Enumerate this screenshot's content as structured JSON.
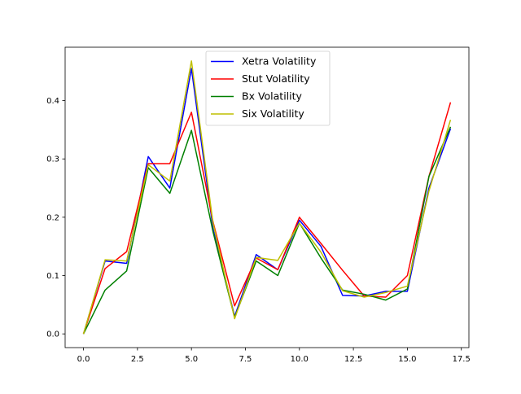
{
  "chart_data": {
    "type": "line",
    "title": "",
    "xlabel": "",
    "ylabel": "",
    "x": [
      0,
      1,
      2,
      3,
      4,
      5,
      6,
      7,
      8,
      9,
      10,
      11,
      12,
      13,
      14,
      15,
      16,
      17
    ],
    "xlim": [
      -0.85,
      17.85
    ],
    "ylim": [
      -0.0235,
      0.4915
    ],
    "x_ticks": [
      0.0,
      2.5,
      5.0,
      7.5,
      10.0,
      12.5,
      15.0,
      17.5
    ],
    "x_tick_labels": [
      "0.0",
      "2.5",
      "5.0",
      "7.5",
      "10.0",
      "12.5",
      "15.0",
      "17.5"
    ],
    "y_ticks": [
      0.0,
      0.1,
      0.2,
      0.3,
      0.4
    ],
    "y_tick_labels": [
      "0.0",
      "0.1",
      "0.2",
      "0.3",
      "0.4"
    ],
    "grid": false,
    "legend_position": "top-center",
    "series": [
      {
        "name": "Xetra Volatility",
        "color": "#0000ff",
        "values": [
          0.0,
          0.125,
          0.121,
          0.304,
          0.25,
          0.455,
          0.18,
          0.03,
          0.136,
          0.11,
          0.195,
          0.15,
          0.066,
          0.065,
          0.073,
          0.073,
          0.25,
          0.352
        ]
      },
      {
        "name": "Stut Volatility",
        "color": "#ff0000",
        "values": [
          0.0,
          0.112,
          0.141,
          0.292,
          0.292,
          0.38,
          0.192,
          0.048,
          0.13,
          0.11,
          0.2,
          0.155,
          0.109,
          0.065,
          0.063,
          0.1,
          0.27,
          0.397
        ]
      },
      {
        "name": "Bx Volatility",
        "color": "#008000",
        "values": [
          0.0,
          0.075,
          0.108,
          0.285,
          0.241,
          0.349,
          0.175,
          0.028,
          0.125,
          0.1,
          0.19,
          0.13,
          0.075,
          0.068,
          0.058,
          0.077,
          0.27,
          0.355
        ]
      },
      {
        "name": "Six Volatility",
        "color": "#bfbf00",
        "values": [
          0.0,
          0.127,
          0.125,
          0.29,
          0.262,
          0.468,
          0.19,
          0.026,
          0.131,
          0.126,
          0.19,
          0.14,
          0.074,
          0.063,
          0.071,
          0.082,
          0.245,
          0.367
        ]
      }
    ]
  }
}
